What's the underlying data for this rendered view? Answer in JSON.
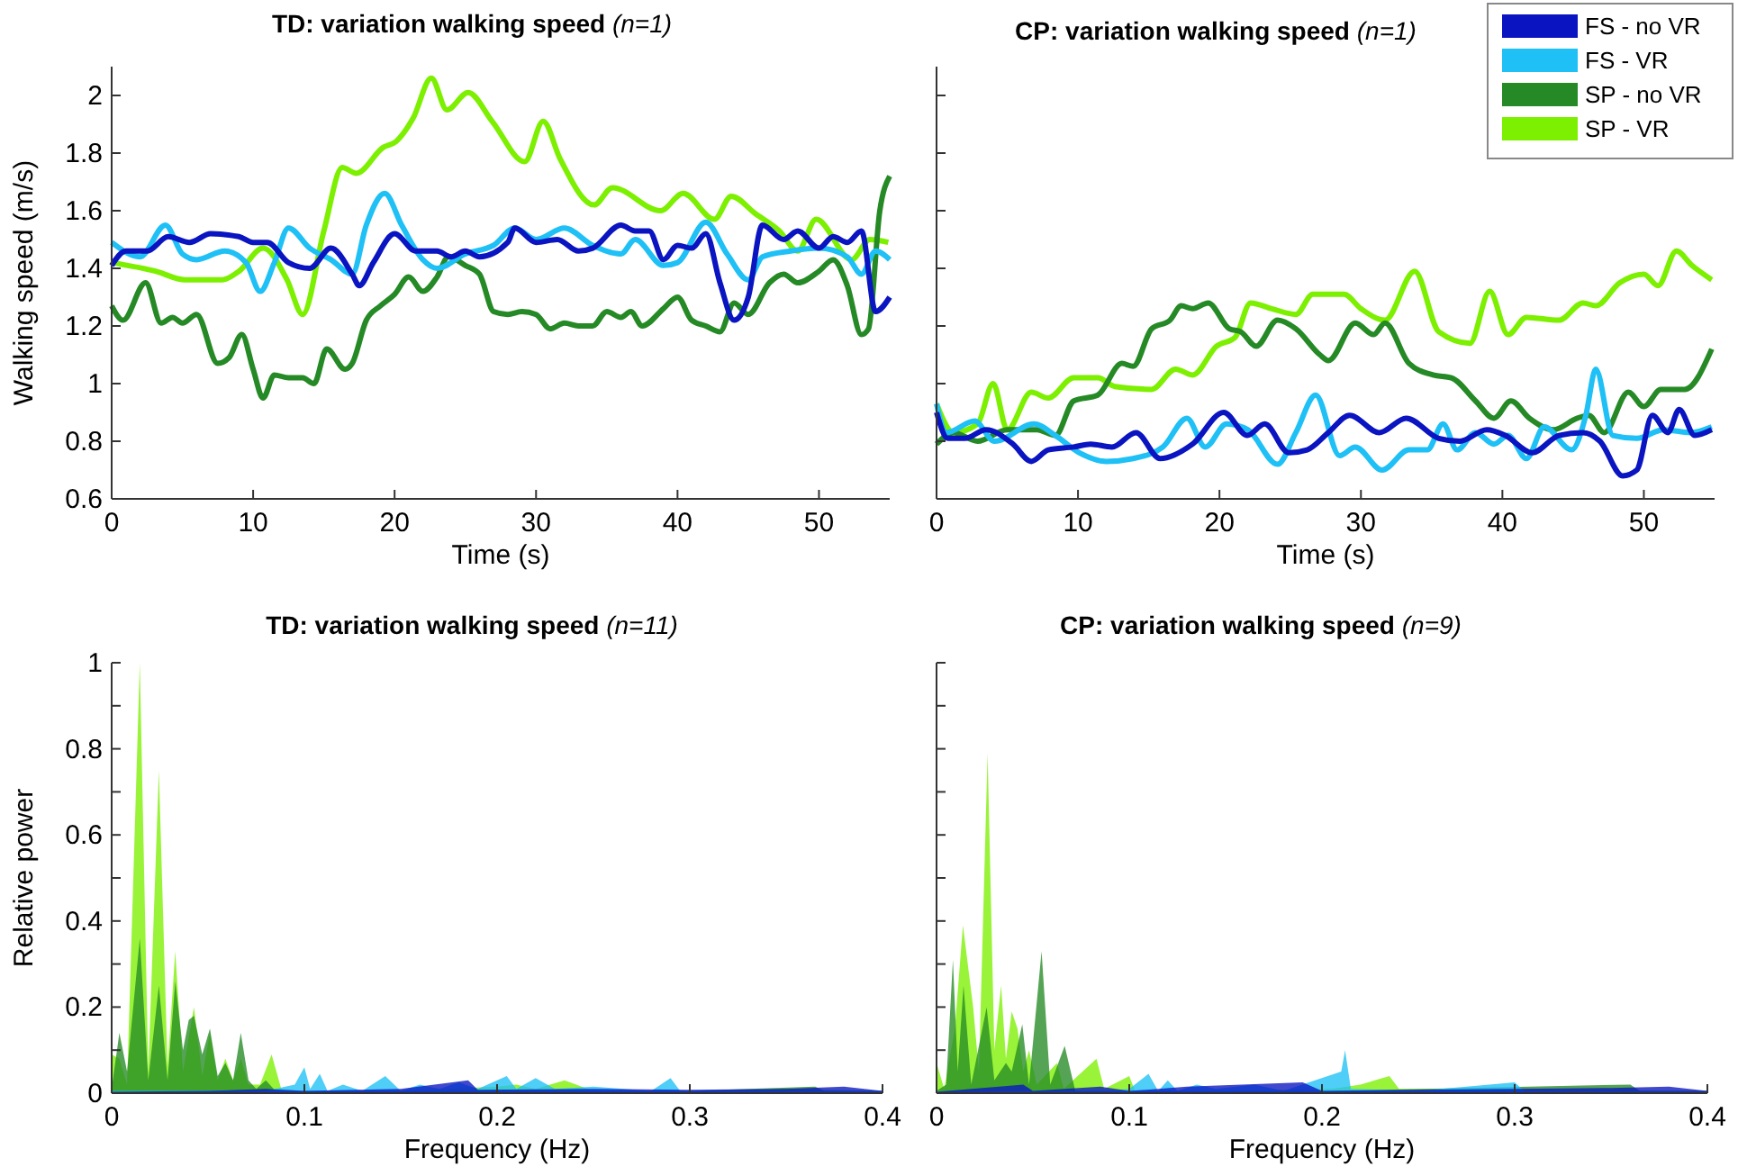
{
  "chart_data": [
    {
      "type": "line",
      "title": "TD: variation walking speed  (n=1)",
      "xlabel": "Time (s)",
      "ylabel": "Walking speed (m/s)",
      "xlim": [
        0,
        55
      ],
      "xticks": [
        0,
        10,
        20,
        30,
        40,
        50
      ],
      "ylim": [
        0.6,
        2.1
      ],
      "yticks": [
        0.6,
        0.8,
        1,
        1.2,
        1.4,
        1.6,
        1.8,
        2
      ],
      "grid": false,
      "series": [
        {
          "color": "#0a14c0",
          "x": [
            0,
            1,
            2.5,
            4,
            5.5,
            7,
            9,
            10,
            11,
            12.5,
            14,
            15.5,
            17,
            17.5,
            18.5,
            20,
            21.5,
            23,
            24,
            25,
            26,
            28,
            28.5,
            30,
            31.5,
            33,
            34,
            36,
            37,
            38,
            39,
            40,
            41,
            42,
            43,
            44,
            45,
            46,
            47.5,
            48.5,
            50,
            51,
            52,
            53,
            54,
            55
          ],
          "values": [
            1.41,
            1.46,
            1.46,
            1.51,
            1.49,
            1.52,
            1.51,
            1.49,
            1.49,
            1.42,
            1.4,
            1.47,
            1.38,
            1.34,
            1.42,
            1.52,
            1.46,
            1.46,
            1.44,
            1.46,
            1.44,
            1.49,
            1.54,
            1.49,
            1.5,
            1.46,
            1.47,
            1.55,
            1.53,
            1.53,
            1.43,
            1.48,
            1.47,
            1.52,
            1.35,
            1.22,
            1.3,
            1.55,
            1.5,
            1.53,
            1.47,
            1.51,
            1.49,
            1.53,
            1.25,
            1.3
          ]
        },
        {
          "color": "#1ec0f5",
          "x": [
            0,
            2,
            3.8,
            5,
            6,
            8,
            9.5,
            10.5,
            11.5,
            12.5,
            14,
            15.5,
            17,
            18,
            19.3,
            20.5,
            22,
            23,
            25,
            27,
            28.5,
            30,
            32,
            34,
            36,
            37,
            39,
            40,
            42,
            43.5,
            45,
            46,
            48,
            50,
            52,
            53,
            54,
            55
          ],
          "values": [
            1.49,
            1.44,
            1.55,
            1.45,
            1.43,
            1.46,
            1.42,
            1.32,
            1.42,
            1.54,
            1.47,
            1.43,
            1.38,
            1.55,
            1.66,
            1.55,
            1.43,
            1.4,
            1.45,
            1.48,
            1.54,
            1.5,
            1.54,
            1.48,
            1.45,
            1.5,
            1.41,
            1.42,
            1.56,
            1.45,
            1.36,
            1.44,
            1.46,
            1.47,
            1.44,
            1.38,
            1.46,
            1.43
          ]
        },
        {
          "color": "#258a25",
          "x": [
            0,
            0.8,
            2.4,
            3.5,
            4.3,
            5,
            6,
            7.5,
            8.3,
            9.2,
            10,
            10.7,
            11.5,
            12.5,
            13.5,
            14.3,
            15.2,
            16.5,
            17,
            18,
            19,
            20,
            21,
            22,
            23,
            23.8,
            25,
            26,
            27,
            28,
            29,
            30,
            31,
            32,
            33,
            34,
            35,
            36,
            36.7,
            37.5,
            39,
            40,
            41,
            42,
            43,
            44,
            45,
            46.5,
            47.5,
            48.5,
            50,
            51,
            52,
            53,
            53.5,
            54.3,
            55
          ],
          "values": [
            1.27,
            1.22,
            1.35,
            1.21,
            1.23,
            1.21,
            1.24,
            1.07,
            1.09,
            1.17,
            1.05,
            0.95,
            1.03,
            1.02,
            1.02,
            1,
            1.12,
            1.05,
            1.07,
            1.22,
            1.27,
            1.31,
            1.37,
            1.32,
            1.37,
            1.44,
            1.41,
            1.38,
            1.25,
            1.24,
            1.25,
            1.24,
            1.19,
            1.21,
            1.2,
            1.2,
            1.25,
            1.23,
            1.25,
            1.2,
            1.26,
            1.3,
            1.22,
            1.2,
            1.18,
            1.28,
            1.24,
            1.35,
            1.38,
            1.35,
            1.39,
            1.43,
            1.34,
            1.17,
            1.19,
            1.6,
            1.72
          ]
        },
        {
          "color": "#7cf000",
          "x": [
            0,
            3.1,
            5.2,
            7.8,
            9,
            10.7,
            12.4,
            13.5,
            15,
            16.3,
            17.3,
            19.2,
            20.1,
            21.3,
            22.6,
            23.7,
            25.2,
            26.9,
            29.2,
            30.5,
            31.7,
            34.1,
            35.4,
            38.8,
            40.4,
            42.6,
            43.8,
            45.5,
            47.2,
            48.5,
            49.8,
            52.3,
            53.6,
            54.9
          ],
          "values": [
            1.42,
            1.39,
            1.36,
            1.36,
            1.39,
            1.47,
            1.36,
            1.24,
            1.53,
            1.75,
            1.73,
            1.82,
            1.84,
            1.92,
            2.06,
            1.95,
            2.01,
            1.91,
            1.77,
            1.91,
            1.78,
            1.62,
            1.68,
            1.6,
            1.66,
            1.57,
            1.65,
            1.59,
            1.53,
            1.46,
            1.57,
            1.43,
            1.5,
            1.49
          ]
        }
      ]
    },
    {
      "type": "line",
      "title": "CP: variation walking speed (n=1)",
      "xlabel": "Time (s)",
      "xlim": [
        0,
        55
      ],
      "xticks": [
        0,
        10,
        20,
        30,
        40,
        50
      ],
      "ylim": [
        0.6,
        2.1
      ],
      "yticks": [
        0.6,
        0.8,
        1,
        1.2,
        1.4,
        1.6,
        1.8,
        2
      ],
      "tick_labels": "x",
      "grid": false,
      "legend": "top right",
      "series": [
        {
          "name": "FS - no VR",
          "color": "#0a14c0",
          "x": [
            0,
            0.8,
            2,
            3.5,
            5.4,
            6.7,
            7.9,
            9.7,
            10.9,
            12.4,
            14.1,
            15.8,
            18.1,
            20.3,
            21.97,
            23.2,
            24.9,
            26.2,
            27.7,
            29.2,
            31.3,
            33.2,
            35.5,
            37,
            38.9,
            40.2,
            42.1,
            44,
            45.7,
            46.9,
            48.5,
            49.5,
            50.6,
            51.7,
            52.5,
            53.6,
            54.8
          ],
          "values": [
            0.9,
            0.81,
            0.81,
            0.84,
            0.79,
            0.73,
            0.77,
            0.78,
            0.79,
            0.78,
            0.83,
            0.74,
            0.79,
            0.9,
            0.82,
            0.86,
            0.76,
            0.77,
            0.83,
            0.89,
            0.83,
            0.88,
            0.81,
            0.8,
            0.84,
            0.82,
            0.76,
            0.82,
            0.83,
            0.8,
            0.68,
            0.7,
            0.89,
            0.83,
            0.91,
            0.82,
            0.84
          ]
        },
        {
          "name": "FS - VR",
          "color": "#1ec0f5",
          "x": [
            0,
            0.7,
            2.7,
            4.1,
            6.9,
            8.4,
            10.1,
            12,
            13.9,
            16,
            17.7,
            19,
            20.5,
            22,
            24.1,
            25.4,
            26.8,
            28.5,
            29.6,
            31.5,
            33.4,
            34.7,
            35.8,
            36.8,
            38.1,
            39.4,
            40.4,
            41.7,
            42.96,
            44.9,
            45.9,
            46.6,
            47.8,
            49.5,
            51.4,
            53.3,
            54.8
          ],
          "values": [
            0.93,
            0.83,
            0.87,
            0.8,
            0.86,
            0.82,
            0.76,
            0.73,
            0.74,
            0.78,
            0.88,
            0.78,
            0.86,
            0.84,
            0.72,
            0.83,
            0.96,
            0.75,
            0.78,
            0.7,
            0.77,
            0.77,
            0.86,
            0.77,
            0.83,
            0.79,
            0.82,
            0.74,
            0.85,
            0.77,
            0.89,
            1.05,
            0.82,
            0.81,
            0.84,
            0.83,
            0.85
          ]
        },
        {
          "name": "SP - no VR",
          "color": "#258a25",
          "x": [
            0,
            1.2,
            2.9,
            5,
            7.1,
            8.4,
            9.7,
            11.4,
            13.1,
            13.9,
            15.2,
            16.5,
            17.3,
            18.1,
            19.2,
            20.7,
            21.5,
            22.6,
            24.1,
            25.4,
            27.1,
            27.7,
            29.6,
            30.9,
            31.7,
            33.4,
            35.1,
            36.4,
            38.1,
            39.4,
            40.6,
            41.9,
            43.6,
            45.3,
            46.1,
            47.2,
            48.9,
            50,
            51.2,
            52.9,
            54.8
          ],
          "values": [
            0.79,
            0.83,
            0.8,
            0.84,
            0.84,
            0.82,
            0.94,
            0.96,
            1.07,
            1.06,
            1.19,
            1.22,
            1.27,
            1.26,
            1.28,
            1.19,
            1.18,
            1.13,
            1.22,
            1.19,
            1.1,
            1.08,
            1.21,
            1.17,
            1.21,
            1.07,
            1.03,
            1.02,
            0.94,
            0.88,
            0.94,
            0.88,
            0.84,
            0.88,
            0.89,
            0.83,
            0.97,
            0.92,
            0.98,
            0.98,
            1.12
          ]
        },
        {
          "name": "SP - VR",
          "color": "#7cf000",
          "x": [
            0,
            1.2,
            2.9,
            4,
            5,
            6.7,
            7.9,
            9.7,
            11.4,
            12.6,
            15.2,
            16.9,
            18.1,
            19.8,
            21.1,
            22.2,
            23.7,
            25.4,
            26.6,
            28.8,
            30,
            31.7,
            33.8,
            35.5,
            37.7,
            39.1,
            40.4,
            41.7,
            44,
            45.7,
            46.6,
            48.3,
            50,
            51,
            52.3,
            53.4,
            54.8
          ],
          "values": [
            0.93,
            0.83,
            0.86,
            1,
            0.84,
            0.97,
            0.95,
            1.02,
            1.02,
            0.99,
            0.98,
            1.05,
            1.03,
            1.13,
            1.16,
            1.28,
            1.26,
            1.24,
            1.31,
            1.31,
            1.26,
            1.22,
            1.39,
            1.18,
            1.14,
            1.32,
            1.17,
            1.23,
            1.22,
            1.28,
            1.27,
            1.35,
            1.38,
            1.34,
            1.46,
            1.41,
            1.36
          ]
        }
      ]
    },
    {
      "type": "area",
      "title": "TD:  variation walking speed (n=11)",
      "xlabel": "Frequency (Hz)",
      "ylabel": "Relative power",
      "xlim": [
        0,
        0.4
      ],
      "xticks": [
        0,
        0.1,
        0.2,
        0.3,
        0.4
      ],
      "ylim": [
        0,
        1
      ],
      "yticks": [
        0,
        {
          "value": 0.1,
          "label": null
        },
        0.2,
        {
          "value": 0.3,
          "label": null
        },
        0.4,
        {
          "value": 0.5,
          "label": null
        },
        0.6,
        {
          "value": 0.7,
          "label": null
        },
        0.8,
        {
          "value": 0.9,
          "label": null
        },
        1
      ],
      "grid": false,
      "series": [
        {
          "color": "#0a14c0",
          "x": [
            0,
            0.05,
            0.08,
            0.1,
            0.15,
            0.185,
            0.19,
            0.25,
            0.3,
            0.35,
            0.38,
            0.4
          ],
          "values": [
            0.003,
            0.005,
            0.01,
            0.005,
            0.01,
            0.03,
            0.008,
            0.01,
            0.008,
            0.01,
            0.015,
            0.005
          ]
        },
        {
          "color": "#1ec0f5",
          "x": [
            0,
            0.08,
            0.095,
            0.1,
            0.103,
            0.108,
            0.112,
            0.12,
            0.13,
            0.142,
            0.15,
            0.16,
            0.17,
            0.18,
            0.19,
            0.205,
            0.21,
            0.22,
            0.23,
            0.25,
            0.28,
            0.29,
            0.295,
            0.35,
            0.4
          ],
          "values": [
            0.005,
            0.005,
            0.02,
            0.06,
            0.01,
            0.045,
            0.005,
            0.02,
            0.005,
            0.04,
            0.005,
            0.02,
            0.01,
            0.025,
            0.01,
            0.04,
            0.01,
            0.035,
            0.01,
            0.015,
            0.005,
            0.035,
            0.005,
            0.005,
            0.005
          ]
        },
        {
          "color": "#258a25",
          "x": [
            0,
            0.004,
            0.008,
            0.0146,
            0.019,
            0.0245,
            0.029,
            0.033,
            0.037,
            0.04,
            0.0427,
            0.047,
            0.051,
            0.055,
            0.059,
            0.063,
            0.067,
            0.071,
            0.075,
            0.08,
            0.085,
            0.1,
            0.2,
            0.3,
            0.365,
            0.37,
            0.4
          ],
          "values": [
            0.01,
            0.14,
            0.05,
            0.36,
            0.03,
            0.25,
            0.03,
            0.26,
            0.1,
            0.17,
            0.18,
            0.09,
            0.15,
            0.04,
            0.07,
            0.03,
            0.14,
            0.03,
            0.01,
            0.03,
            0.005,
            0.005,
            0.005,
            0.005,
            0.015,
            0.005,
            0.005
          ]
        },
        {
          "color": "#7cf000",
          "x": [
            0,
            0.004,
            0.008,
            0.0146,
            0.019,
            0.0245,
            0.029,
            0.033,
            0.037,
            0.0427,
            0.047,
            0.051,
            0.055,
            0.059,
            0.063,
            0.067,
            0.071,
            0.077,
            0.083,
            0.088,
            0.1,
            0.15,
            0.2,
            0.21,
            0.22,
            0.235,
            0.25,
            0.3,
            0.35,
            0.4
          ],
          "values": [
            0.09,
            0.08,
            0.02,
            1,
            0.05,
            0.75,
            0.06,
            0.33,
            0.05,
            0.2,
            0.04,
            0.14,
            0.03,
            0.08,
            0.03,
            0.08,
            0.02,
            0.02,
            0.09,
            0.01,
            0.005,
            0.005,
            0.015,
            0.02,
            0.01,
            0.03,
            0.005,
            0.005,
            0.01,
            0.005
          ]
        }
      ]
    },
    {
      "type": "area",
      "title": "CP: variation walking speed (n=9)",
      "xlabel": "Frequency (Hz)",
      "xlim": [
        0,
        0.4
      ],
      "xticks": [
        0,
        0.1,
        0.2,
        0.3,
        0.4
      ],
      "ylim": [
        0,
        1
      ],
      "yticks": [
        0,
        {
          "value": 0.1,
          "label": null
        },
        0.2,
        {
          "value": 0.3,
          "label": null
        },
        0.4,
        {
          "value": 0.5,
          "label": null
        },
        0.6,
        {
          "value": 0.7,
          "label": null
        },
        0.8,
        {
          "value": 0.9,
          "label": null
        },
        1
      ],
      "tick_labels": "x",
      "grid": false,
      "series": [
        {
          "color": "#0a14c0",
          "x": [
            0,
            0.045,
            0.05,
            0.085,
            0.1,
            0.13,
            0.19,
            0.2,
            0.25,
            0.3,
            0.35,
            0.38,
            0.4
          ],
          "values": [
            0.003,
            0.02,
            0.005,
            0.015,
            0.005,
            0.015,
            0.025,
            0.005,
            0.008,
            0.01,
            0.012,
            0.015,
            0.005
          ]
        },
        {
          "color": "#1ec0f5",
          "x": [
            0,
            0.09,
            0.1,
            0.11,
            0.115,
            0.12,
            0.125,
            0.135,
            0.145,
            0.165,
            0.18,
            0.21,
            0.212,
            0.215,
            0.25,
            0.275,
            0.3,
            0.305,
            0.4
          ],
          "values": [
            0.003,
            0.005,
            0.01,
            0.045,
            0.005,
            0.03,
            0.005,
            0.02,
            0.01,
            0.02,
            0.005,
            0.05,
            0.1,
            0.01,
            0.005,
            0.015,
            0.025,
            0.005,
            0.003
          ]
        },
        {
          "color": "#258a25",
          "x": [
            0,
            0.005,
            0.0085,
            0.011,
            0.014,
            0.018,
            0.026,
            0.03,
            0.036,
            0.039,
            0.0445,
            0.048,
            0.0545,
            0.059,
            0.0665,
            0.072,
            0.1,
            0.2,
            0.36,
            0.365,
            0.4
          ],
          "values": [
            0.005,
            0.02,
            0.31,
            0.05,
            0.25,
            0.02,
            0.2,
            0.03,
            0.07,
            0.05,
            0.16,
            0.02,
            0.33,
            0.02,
            0.11,
            0.005,
            0.005,
            0.005,
            0.02,
            0.005,
            0.005
          ]
        },
        {
          "color": "#7cf000",
          "x": [
            0,
            0.004,
            0.0095,
            0.0137,
            0.019,
            0.022,
            0.0265,
            0.03,
            0.0335,
            0.036,
            0.039,
            0.042,
            0.045,
            0.048,
            0.052,
            0.0625,
            0.066,
            0.083,
            0.087,
            0.1,
            0.103,
            0.15,
            0.205,
            0.22,
            0.235,
            0.24,
            0.4
          ],
          "values": [
            0.07,
            0.01,
            0.15,
            0.39,
            0.2,
            0.05,
            0.79,
            0.1,
            0.25,
            0.08,
            0.19,
            0.15,
            0.05,
            0.1,
            0.02,
            0.07,
            0.01,
            0.08,
            0.01,
            0.04,
            0.005,
            0.005,
            0.01,
            0.02,
            0.04,
            0.01,
            0.005
          ]
        }
      ]
    }
  ]
}
